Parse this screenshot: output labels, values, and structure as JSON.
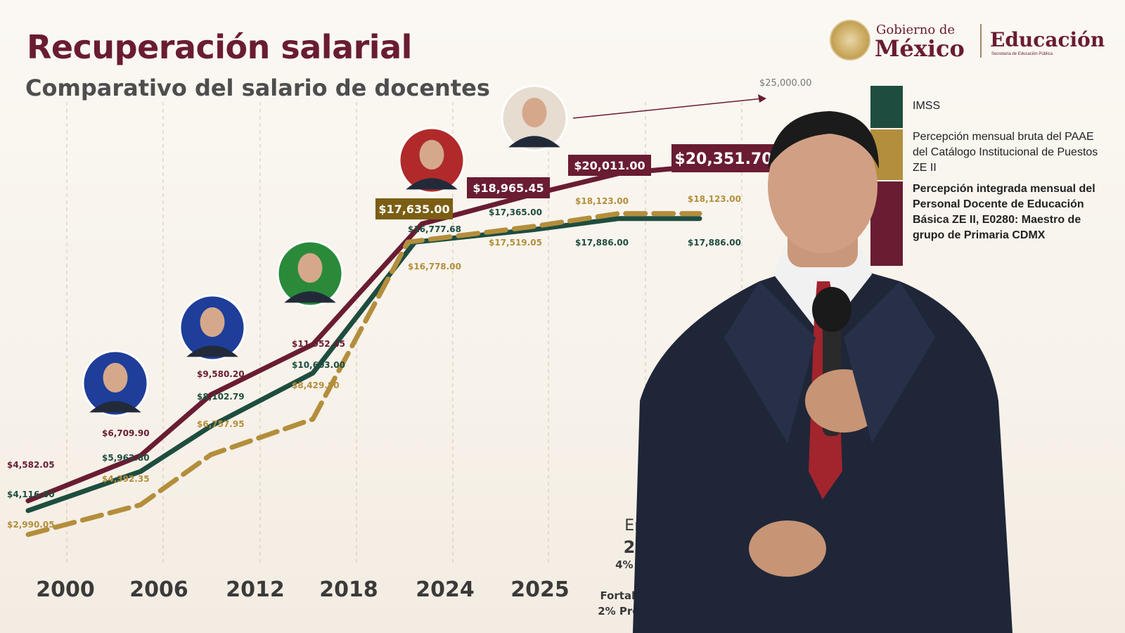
{
  "header": {
    "title": "Recuperación salarial",
    "subtitle": "Comparativo del salario de docentes"
  },
  "logo": {
    "line1": "Gobierno de",
    "line2": "México",
    "secretaria": "Educación",
    "secretaria_sub": "Secretaría de Educación Pública"
  },
  "colors": {
    "dark": "#691c32",
    "green": "#1e4d3f",
    "gold": "#b38e3c"
  },
  "chart_data": {
    "type": "line",
    "x_categories": [
      "2000",
      "2006",
      "2012",
      "2018",
      "2024",
      "2025",
      "Enero 2026"
    ],
    "x_tick_labels": [
      "2000",
      "2006",
      "2012",
      "2018",
      "2024",
      "2025"
    ],
    "y_ref_label": "$25,000.00",
    "y_ref_value": 25000,
    "series": [
      {
        "name": "Percepción integrada mensual del Personal Docente de Educación Básica ZE II, E0280: Maestro de grupo de Primaria CDMX",
        "color": "#691c32",
        "points": [
          {
            "x": "2000",
            "y": 4582.05,
            "label": "$4,582.05"
          },
          {
            "x": "2006",
            "y": 6709.9,
            "label": "$6,709.90"
          },
          {
            "x": "2012",
            "y": 9580.2,
            "label": "$9,580.20"
          },
          {
            "x": "2018",
            "y": 11952.45,
            "label": "$11,952.45"
          },
          {
            "x": "2024",
            "y": 17635.0,
            "label": "$17,635.00"
          },
          {
            "x": "2025",
            "y": 18965.45,
            "label": "$18,965.45"
          },
          {
            "x": "Enero 2026",
            "y": 20011.0,
            "label": "$20,011.00"
          },
          {
            "x": "Enero 2026",
            "y": 20351.7,
            "label": "$20,351.70"
          }
        ]
      },
      {
        "name": "IMSS",
        "color": "#1e4d3f",
        "points": [
          {
            "x": "2000",
            "y": 4116.0,
            "label": "$4,116.00"
          },
          {
            "x": "2006",
            "y": 5962.8,
            "label": "$5,962.80"
          },
          {
            "x": "2012",
            "y": 8102.79,
            "label": "$8,102.79"
          },
          {
            "x": "2018",
            "y": 10603.0,
            "label": "$10,603.00"
          },
          {
            "x": "2024",
            "y": 16777.68,
            "label": "$16,777.68"
          },
          {
            "x": "2025",
            "y": 17365.0,
            "label": "$17,365.00"
          },
          {
            "x": "Enero 2026",
            "y": 17886.0,
            "label": "$17,886.00"
          },
          {
            "x": "Enero 2026",
            "y": 17886.0,
            "label": "$17,886.00"
          }
        ]
      },
      {
        "name": "Percepción mensual bruta del PAAE del Catálogo Institucional de Puestos ZE II",
        "color": "#b38e3c",
        "points": [
          {
            "x": "2000",
            "y": 2990.05,
            "label": "$2,990.05"
          },
          {
            "x": "2006",
            "y": 4392.35,
            "label": "$4,392.35"
          },
          {
            "x": "2012",
            "y": 6757.95,
            "label": "$6,757.95"
          },
          {
            "x": "2018",
            "y": 8429.8,
            "label": "$8,429.80"
          },
          {
            "x": "2024",
            "y": 16778.0,
            "label": "$16,778.00"
          },
          {
            "x": "2025",
            "y": 17519.05,
            "label": "$17,519.05"
          },
          {
            "x": "Enero 2026",
            "y": 18123.0,
            "label": "$18,123.00"
          },
          {
            "x": "Enero 2026",
            "y": 18123.0,
            "label": "$18,123.00"
          }
        ]
      }
    ],
    "legend_placement": "right",
    "grid": "vertical-dashed"
  },
  "footnote": {
    "month": "Enero",
    "year": "2026",
    "items": [
      "4% Salario",
      "1% Fortalecimiento",
      "2% Prestaciones"
    ]
  },
  "legend": [
    {
      "label": "IMSS",
      "color": "#1e4d3f",
      "bold": false
    },
    {
      "label": "Percepción mensual bruta del PAAE del Catálogo Institucional de Puestos ZE II",
      "color": "#b38e3c",
      "bold": false
    },
    {
      "label": "Percepción integrada mensual del Personal Docente de Educación Básica ZE II, E0280: Maestro de grupo de Primaria CDMX",
      "color": "#691c32",
      "bold": true
    }
  ]
}
